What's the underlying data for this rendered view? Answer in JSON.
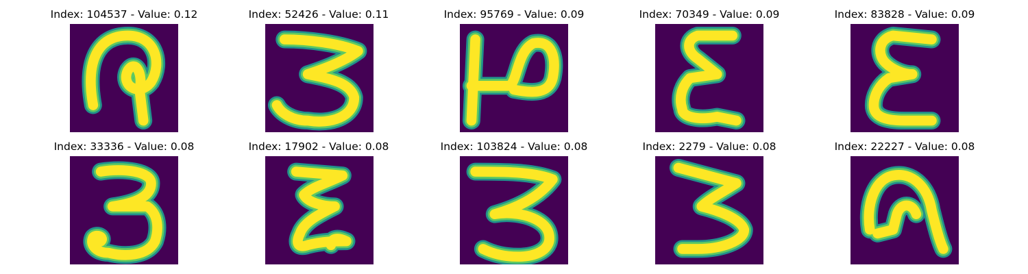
{
  "figure": {
    "panels": [
      {
        "title": "Index: 104537 - Value: 0.12",
        "glyph": "hook-loop-icon"
      },
      {
        "title": "Index: 52426 - Value: 0.11",
        "glyph": "digit-three-icon"
      },
      {
        "title": "Index: 95769 - Value: 0.09",
        "glyph": "rotated-p-icon"
      },
      {
        "title": "Index: 70349 - Value: 0.09",
        "glyph": "epsilon-icon"
      },
      {
        "title": "Index: 83828 - Value: 0.09",
        "glyph": "epsilon-icon"
      },
      {
        "title": "Index: 33336 - Value: 0.08",
        "glyph": "digit-three-icon"
      },
      {
        "title": "Index: 17902 - Value: 0.08",
        "glyph": "epsilon-icon"
      },
      {
        "title": "Index: 103824 - Value: 0.08",
        "glyph": "digit-three-icon"
      },
      {
        "title": "Index: 2279 - Value: 0.08",
        "glyph": "digit-three-icon"
      },
      {
        "title": "Index: 22227 - Value: 0.08",
        "glyph": "arch-icon"
      }
    ],
    "colors": {
      "background": "#440154",
      "stroke_edge": "#21918c",
      "stroke_mid": "#5ec962",
      "stroke_core": "#fde725"
    }
  }
}
